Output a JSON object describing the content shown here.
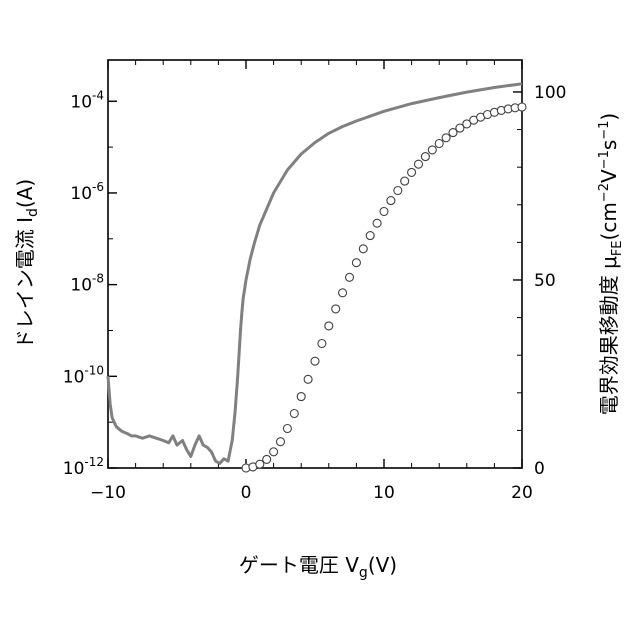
{
  "chart_data": {
    "type": "line",
    "xlabel": "ゲート電圧 V_g(V)",
    "ylabel_left": "ドレイン電流 I_d(A)",
    "ylabel_right": "電界効果移動度 μ_FE(cm^-2V^-1s^-1)",
    "x_ticks": [
      "−10",
      "0",
      "10",
      "20"
    ],
    "x_tick_values": [
      -10,
      0,
      10,
      20
    ],
    "left_ticks": [
      {
        "base": "10",
        "exp": "-12",
        "value": -12
      },
      {
        "base": "10",
        "exp": "-10",
        "value": -10
      },
      {
        "base": "10",
        "exp": "-8",
        "value": -8
      },
      {
        "base": "10",
        "exp": "-6",
        "value": -6
      },
      {
        "base": "10",
        "exp": "-4",
        "value": -4
      }
    ],
    "right_ticks": [
      {
        "label": "0",
        "value": 0
      },
      {
        "label": "50",
        "value": 50
      },
      {
        "label": "100",
        "value": 100
      }
    ],
    "xlim": [
      -10,
      20
    ],
    "ylim_left_log10": [
      -12,
      -3.1
    ],
    "ylim_right": [
      0,
      108.5
    ],
    "left_scale": "log",
    "grid": false,
    "series": [
      {
        "axis": "left",
        "color": "#808080",
        "x": [
          -10.0,
          -9.85,
          -9.7,
          -9.4,
          -9.0,
          -8.6,
          -8.3,
          -8.0,
          -7.5,
          -7.0,
          -6.5,
          -6.0,
          -5.6,
          -5.3,
          -5.0,
          -4.6,
          -4.3,
          -4.0,
          -3.7,
          -3.4,
          -3.1,
          -2.8,
          -2.5,
          -2.2,
          -1.9,
          -1.6,
          -1.3,
          -1.0,
          -0.8,
          -0.6,
          -0.5,
          -0.4,
          -0.3,
          -0.2,
          0.0,
          0.3,
          0.6,
          1.0,
          1.5,
          2.0,
          3.0,
          4.0,
          5.0,
          6.0,
          7.0,
          8.0,
          10.0,
          12.0,
          14.0,
          16.0,
          18.0,
          20.0
        ],
        "log10_y": [
          -10.0,
          -10.6,
          -10.9,
          -11.1,
          -11.2,
          -11.25,
          -11.3,
          -11.3,
          -11.35,
          -11.3,
          -11.35,
          -11.4,
          -11.45,
          -11.3,
          -11.5,
          -11.4,
          -11.6,
          -11.75,
          -11.5,
          -11.3,
          -11.5,
          -11.55,
          -11.65,
          -11.85,
          -11.9,
          -11.8,
          -11.85,
          -11.4,
          -10.8,
          -10.0,
          -9.5,
          -9.0,
          -8.6,
          -8.3,
          -7.9,
          -7.45,
          -7.1,
          -6.7,
          -6.35,
          -6.0,
          -5.5,
          -5.15,
          -4.9,
          -4.7,
          -4.55,
          -4.43,
          -4.22,
          -4.05,
          -3.92,
          -3.8,
          -3.7,
          -3.62
        ]
      },
      {
        "axis": "right",
        "marker": "o",
        "color": "#404040",
        "x": [
          0.0,
          0.5,
          1.0,
          1.5,
          2.0,
          2.5,
          3.0,
          3.5,
          4.0,
          4.5,
          5.0,
          5.5,
          6.0,
          6.5,
          7.0,
          7.5,
          8.0,
          8.5,
          9.0,
          9.5,
          10.0,
          10.5,
          11.0,
          11.5,
          12.0,
          12.5,
          13.0,
          13.5,
          14.0,
          14.5,
          15.0,
          15.5,
          16.0,
          16.5,
          17.0,
          17.5,
          18.0,
          18.5,
          19.0,
          19.5,
          20.0
        ],
        "y": [
          0.0,
          0.3,
          1.0,
          2.3,
          4.3,
          7.0,
          10.5,
          14.5,
          19.0,
          23.6,
          28.4,
          33.1,
          37.8,
          42.3,
          46.6,
          50.7,
          54.6,
          58.3,
          61.8,
          65.1,
          68.2,
          71.1,
          73.8,
          76.3,
          78.6,
          80.8,
          82.8,
          84.6,
          86.3,
          87.8,
          89.2,
          90.4,
          91.5,
          92.5,
          93.3,
          94.0,
          94.6,
          95.1,
          95.5,
          95.8,
          96.0
        ]
      }
    ]
  }
}
